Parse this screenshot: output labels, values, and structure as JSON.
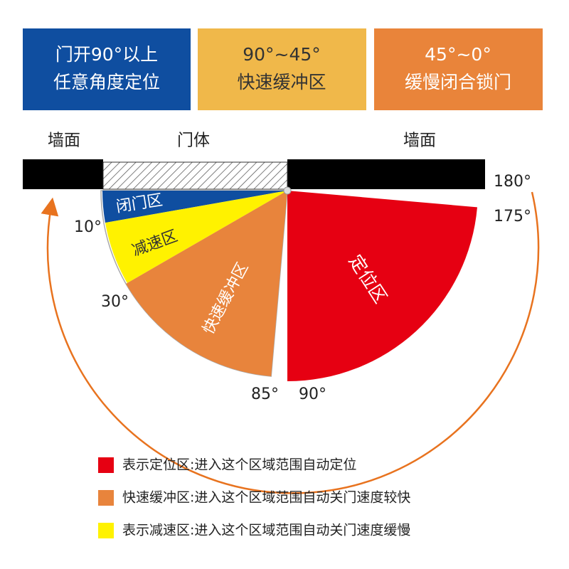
{
  "header": {
    "boxes": [
      {
        "line1": "门开90°以上",
        "line2": "任意角度定位"
      },
      {
        "line1": "90°~45°",
        "line2": "快速缓冲区"
      },
      {
        "line1": "45°~0°",
        "line2": "缓慢闭合锁门"
      }
    ]
  },
  "labels": {
    "wall_left": "墙面",
    "door": "门体",
    "wall_right": "墙面"
  },
  "zones": {
    "close": "闭门区",
    "slow": "减速区",
    "buffer": "快速缓冲区",
    "position": "定位区"
  },
  "angles": {
    "a10": "10°",
    "a30": "30°",
    "a85": "85°",
    "a90": "90°",
    "a175": "175°",
    "a180": "180°"
  },
  "legend": [
    {
      "text": "表示定位区:进入这个区域范围自动定位",
      "color": "#e60012"
    },
    {
      "text": "快速缓冲区:进入这个区域范围自动关门速度较快",
      "color": "#e8843c"
    },
    {
      "text": "表示减速区:进入这个区域范围自动关门速度缓慢",
      "color": "#fff200"
    }
  ]
}
